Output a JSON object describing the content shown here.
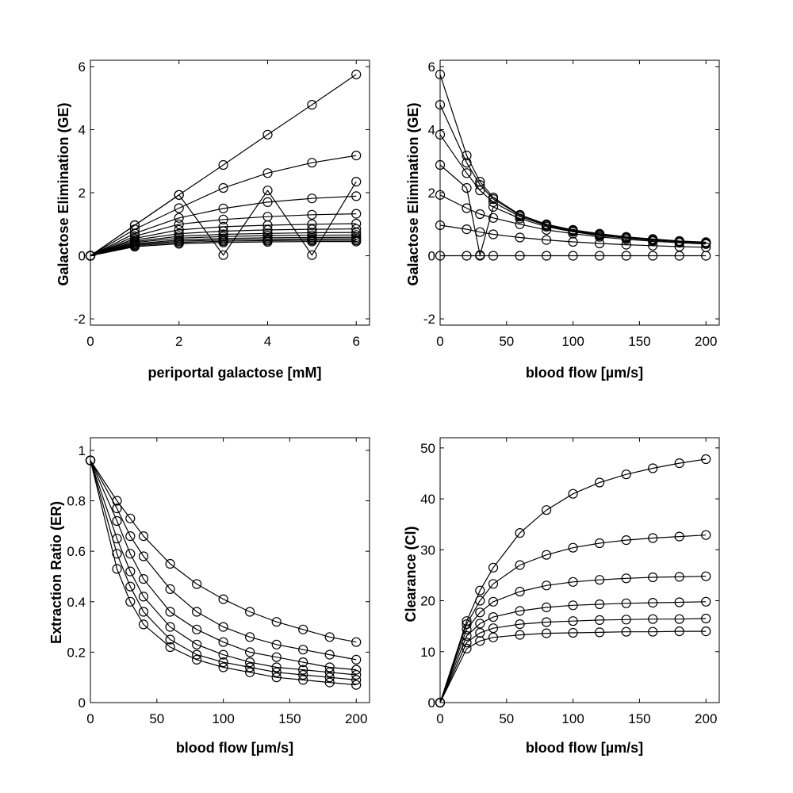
{
  "chart_data": [
    {
      "type": "line",
      "xlabel": "periportal galactose [mM]",
      "ylabel": "Galactose Elimination (GE)",
      "xlim": [
        0,
        6.3
      ],
      "ylim": [
        -2.2,
        6.2
      ],
      "xticks": [
        0,
        2,
        4,
        6
      ],
      "yticks": [
        -2,
        0,
        2,
        4,
        6
      ],
      "marker": "open-circle",
      "x": [
        0,
        1,
        2,
        3,
        4,
        5,
        6
      ],
      "series": [
        {
          "values": [
            0,
            0.97,
            1.93,
            2.88,
            3.84,
            4.79,
            5.75
          ]
        },
        {
          "values": [
            0,
            0.97,
            1.93,
            0.02,
            2.07,
            0.02,
            2.35
          ]
        },
        {
          "values": [
            0,
            0.84,
            1.51,
            2.15,
            2.62,
            2.95,
            3.18
          ]
        },
        {
          "values": [
            0,
            0.71,
            1.2,
            1.5,
            1.7,
            1.82,
            1.89
          ]
        },
        {
          "values": [
            0,
            0.62,
            1.0,
            1.15,
            1.24,
            1.3,
            1.33
          ]
        },
        {
          "values": [
            0,
            0.55,
            0.82,
            0.92,
            0.97,
            1.0,
            1.02
          ]
        },
        {
          "values": [
            0,
            0.5,
            0.7,
            0.78,
            0.82,
            0.84,
            0.85
          ]
        },
        {
          "values": [
            0,
            0.45,
            0.62,
            0.68,
            0.71,
            0.73,
            0.74
          ]
        },
        {
          "values": [
            0,
            0.42,
            0.56,
            0.61,
            0.64,
            0.65,
            0.66
          ]
        },
        {
          "values": [
            0,
            0.38,
            0.5,
            0.55,
            0.57,
            0.58,
            0.59
          ]
        },
        {
          "values": [
            0,
            0.35,
            0.46,
            0.5,
            0.52,
            0.53,
            0.54
          ]
        },
        {
          "values": [
            0,
            0.32,
            0.42,
            0.46,
            0.48,
            0.49,
            0.49
          ]
        },
        {
          "values": [
            0,
            0.29,
            0.38,
            0.42,
            0.44,
            0.45,
            0.45
          ]
        }
      ]
    },
    {
      "type": "line",
      "xlabel": "blood flow [µm/s]",
      "ylabel": "Galactose Elimination (GE)",
      "xlim": [
        0,
        210
      ],
      "ylim": [
        -2.2,
        6.2
      ],
      "xticks": [
        0,
        50,
        100,
        150,
        200
      ],
      "yticks": [
        -2,
        0,
        2,
        4,
        6
      ],
      "marker": "open-circle",
      "x": [
        0,
        20,
        30,
        40,
        60,
        80,
        100,
        120,
        140,
        160,
        180,
        200
      ],
      "series": [
        {
          "values": [
            5.75,
            3.18,
            2.35,
            1.85,
            1.3,
            1.0,
            0.82,
            0.7,
            0.6,
            0.53,
            0.47,
            0.43
          ]
        },
        {
          "values": [
            4.79,
            2.95,
            2.25,
            1.8,
            1.28,
            0.98,
            0.8,
            0.68,
            0.59,
            0.52,
            0.46,
            0.42
          ]
        },
        {
          "values": [
            3.84,
            2.62,
            2.07,
            1.7,
            1.24,
            0.96,
            0.78,
            0.66,
            0.58,
            0.51,
            0.45,
            0.41
          ]
        },
        {
          "values": [
            2.88,
            2.15,
            0.02,
            1.55,
            1.18,
            0.92,
            0.76,
            0.64,
            0.56,
            0.49,
            0.44,
            0.4
          ]
        },
        {
          "values": [
            1.93,
            1.51,
            1.32,
            1.2,
            1.0,
            0.82,
            0.7,
            0.6,
            0.52,
            0.46,
            0.41,
            0.37
          ]
        },
        {
          "values": [
            0.97,
            0.84,
            0.75,
            0.68,
            0.58,
            0.5,
            0.44,
            0.39,
            0.35,
            0.32,
            0.29,
            0.27
          ]
        },
        {
          "values": [
            0,
            0,
            0,
            0,
            0,
            0,
            0,
            0,
            0,
            0,
            0,
            0
          ]
        }
      ]
    },
    {
      "type": "line",
      "xlabel": "blood flow [µm/s]",
      "ylabel": "Extraction Ratio (ER)",
      "xlim": [
        0,
        210
      ],
      "ylim": [
        0,
        1.05
      ],
      "xticks": [
        0,
        50,
        100,
        150,
        200
      ],
      "yticks": [
        0,
        0.2,
        0.4,
        0.6,
        0.8,
        1
      ],
      "ytick_labels": [
        "0",
        "0.2",
        "0.4",
        "0.6",
        "0.8",
        "1"
      ],
      "marker": "open-circle",
      "x": [
        0,
        20,
        30,
        40,
        60,
        80,
        100,
        120,
        140,
        160,
        180,
        200
      ],
      "series": [
        {
          "values": [
            0.96,
            0.8,
            0.73,
            0.66,
            0.55,
            0.47,
            0.41,
            0.36,
            0.32,
            0.29,
            0.26,
            0.24
          ]
        },
        {
          "values": [
            0.96,
            0.77,
            0.66,
            0.58,
            0.45,
            0.36,
            0.3,
            0.26,
            0.23,
            0.21,
            0.19,
            0.17
          ]
        },
        {
          "values": [
            0.96,
            0.72,
            0.59,
            0.49,
            0.36,
            0.29,
            0.24,
            0.2,
            0.18,
            0.16,
            0.14,
            0.13
          ]
        },
        {
          "values": [
            0.96,
            0.65,
            0.52,
            0.42,
            0.3,
            0.23,
            0.19,
            0.16,
            0.14,
            0.13,
            0.12,
            0.11
          ]
        },
        {
          "values": [
            0.96,
            0.59,
            0.46,
            0.36,
            0.25,
            0.19,
            0.16,
            0.14,
            0.12,
            0.11,
            0.1,
            0.09
          ]
        },
        {
          "values": [
            0.96,
            0.53,
            0.4,
            0.31,
            0.22,
            0.17,
            0.14,
            0.12,
            0.1,
            0.09,
            0.08,
            0.07
          ]
        }
      ]
    },
    {
      "type": "line",
      "xlabel": "blood flow [µm/s]",
      "ylabel": "Clearance (Cl)",
      "xlim": [
        0,
        210
      ],
      "ylim": [
        0,
        52
      ],
      "xticks": [
        0,
        50,
        100,
        150,
        200
      ],
      "yticks": [
        0,
        10,
        20,
        30,
        40,
        50
      ],
      "marker": "open-circle",
      "x": [
        0,
        20,
        30,
        40,
        60,
        80,
        100,
        120,
        140,
        160,
        180,
        200
      ],
      "series": [
        {
          "values": [
            0,
            16.0,
            22.0,
            26.5,
            33.3,
            37.8,
            41.0,
            43.2,
            44.8,
            46.0,
            47.0,
            47.8
          ]
        },
        {
          "values": [
            0,
            15.4,
            20.0,
            23.3,
            27.0,
            29.0,
            30.4,
            31.3,
            31.9,
            32.3,
            32.6,
            32.9
          ]
        },
        {
          "values": [
            0,
            14.4,
            17.7,
            19.8,
            21.8,
            23.0,
            23.7,
            24.1,
            24.4,
            24.6,
            24.7,
            24.8
          ]
        },
        {
          "values": [
            0,
            13.1,
            15.5,
            16.8,
            18.0,
            18.7,
            19.1,
            19.3,
            19.5,
            19.6,
            19.7,
            19.8
          ]
        },
        {
          "values": [
            0,
            11.8,
            13.7,
            14.6,
            15.4,
            15.8,
            16.0,
            16.2,
            16.3,
            16.4,
            16.4,
            16.5
          ]
        },
        {
          "values": [
            0,
            10.6,
            12.1,
            12.8,
            13.3,
            13.6,
            13.7,
            13.8,
            13.9,
            13.9,
            14.0,
            14.0
          ]
        }
      ]
    }
  ]
}
